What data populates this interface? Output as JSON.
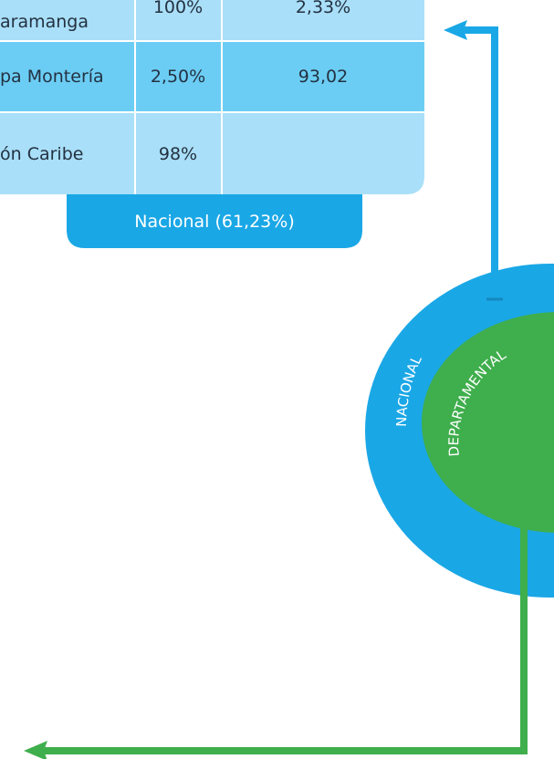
{
  "table": {
    "rows": [
      [
        "aramanga",
        "100%",
        "2,33%"
      ],
      [
        "pa Montería",
        "2,50%",
        "93,02"
      ],
      [
        "ón Caribe",
        "98%"
      ]
    ],
    "footer": "Nacional (61,23%)"
  },
  "diagram": {
    "outer_label": "NACIONAL",
    "inner_label": "DEPARTAMENTAL"
  }
}
